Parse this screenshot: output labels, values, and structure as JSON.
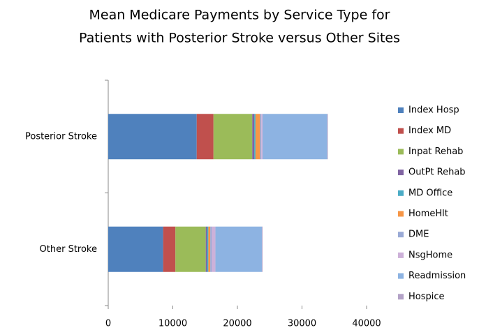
{
  "chart_data": {
    "type": "stacked-bar-horizontal",
    "title": [
      "Mean Medicare Payments by Service Type for",
      "Patients with Posterior Stroke versus Other Sites"
    ],
    "categories": [
      "Posterior Stroke",
      "Other Stroke"
    ],
    "series": [
      {
        "name": "Index Hosp",
        "color": "#4f81bd",
        "values": [
          13700,
          8500
        ]
      },
      {
        "name": "Index MD",
        "color": "#c0504d",
        "values": [
          2600,
          1900
        ]
      },
      {
        "name": "Inpat Rehab",
        "color": "#9bbb59",
        "values": [
          6000,
          4700
        ]
      },
      {
        "name": "OutPt Rehab",
        "color": "#8064a2",
        "values": [
          300,
          200
        ]
      },
      {
        "name": "MD Office",
        "color": "#4bacc6",
        "values": [
          200,
          200
        ]
      },
      {
        "name": "HomeHlt",
        "color": "#f79646",
        "values": [
          700,
          300
        ]
      },
      {
        "name": "DME",
        "color": "#9aaad6",
        "values": [
          200,
          200
        ]
      },
      {
        "name": "NsgHome",
        "color": "#cdb1d9",
        "values": [
          200,
          600
        ]
      },
      {
        "name": "Readmission",
        "color": "#8db3e2",
        "values": [
          10000,
          7200
        ]
      },
      {
        "name": "Hospice",
        "color": "#b3a2c7",
        "values": [
          100,
          100
        ]
      }
    ],
    "xlim": [
      0,
      40000
    ],
    "xticks": [
      0,
      10000,
      20000,
      30000,
      40000
    ],
    "legend": "right"
  }
}
